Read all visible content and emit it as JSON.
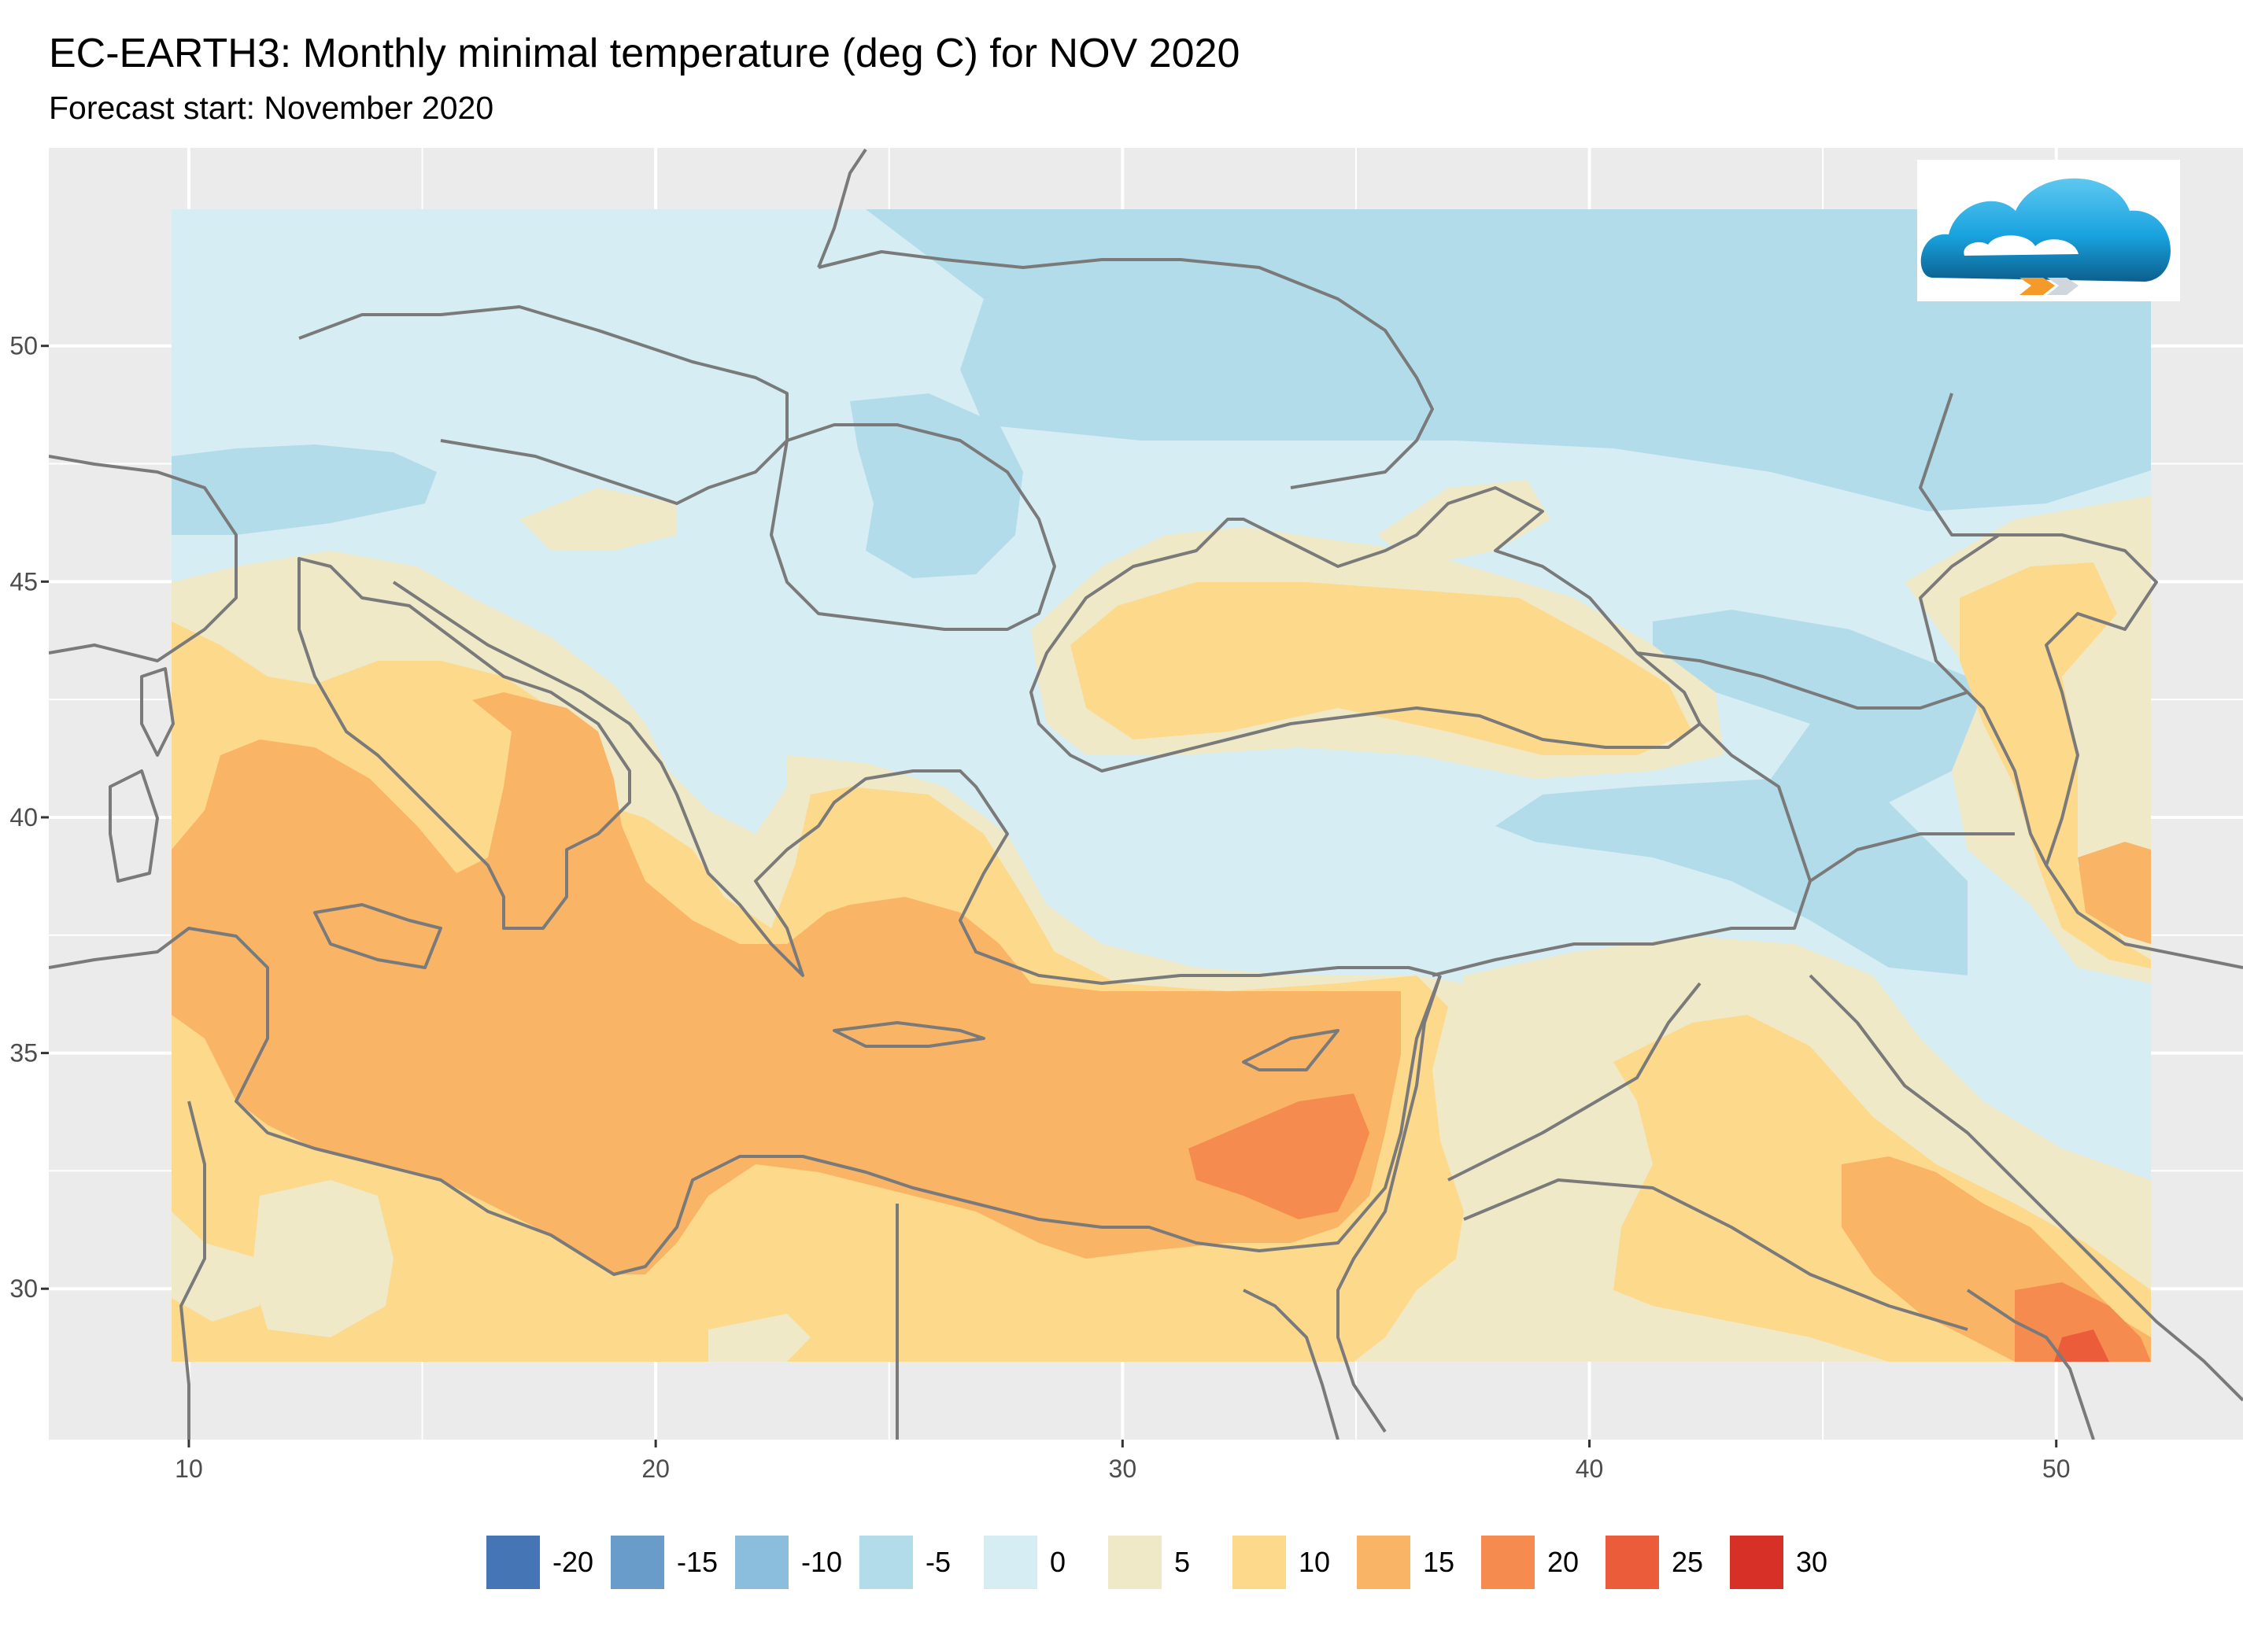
{
  "header": {
    "title": "EC-EARTH3: Monthly minimal temperature (deg C) for NOV 2020",
    "subtitle": "Forecast start: November 2020"
  },
  "map": {
    "panel_background": "#ebebeb",
    "grid_color": "#ffffff",
    "border_color": "#7a7a7a",
    "x_ticks": [
      "10",
      "20",
      "30",
      "40",
      "50"
    ],
    "y_ticks": [
      "50",
      "45",
      "40",
      "35",
      "30"
    ],
    "x_tick_values": [
      10,
      20,
      30,
      40,
      50
    ],
    "y_tick_values": [
      50,
      45,
      40,
      35,
      30
    ],
    "lon_range": [
      7,
      54
    ],
    "lat_range": [
      26.8,
      54.2
    ],
    "data_extent": {
      "lon": [
        9.5,
        51.6
      ],
      "lat": [
        28.5,
        53
      ]
    }
  },
  "legend": {
    "items": [
      {
        "label": "-20",
        "color": "#4575b4"
      },
      {
        "label": "-15",
        "color": "#6a9cc9"
      },
      {
        "label": "-10",
        "color": "#8abedc"
      },
      {
        "label": "-5",
        "color": "#b3dcea"
      },
      {
        "label": "0",
        "color": "#d6edf3"
      },
      {
        "label": "5",
        "color": "#efe9c8"
      },
      {
        "label": "10",
        "color": "#fdd98b"
      },
      {
        "label": "15",
        "color": "#fab466"
      },
      {
        "label": "20",
        "color": "#f58b4e"
      },
      {
        "label": "25",
        "color": "#ea5c3a"
      },
      {
        "label": "30",
        "color": "#d73027"
      }
    ]
  },
  "logo": {
    "icon": "cloud-logo-icon"
  }
}
